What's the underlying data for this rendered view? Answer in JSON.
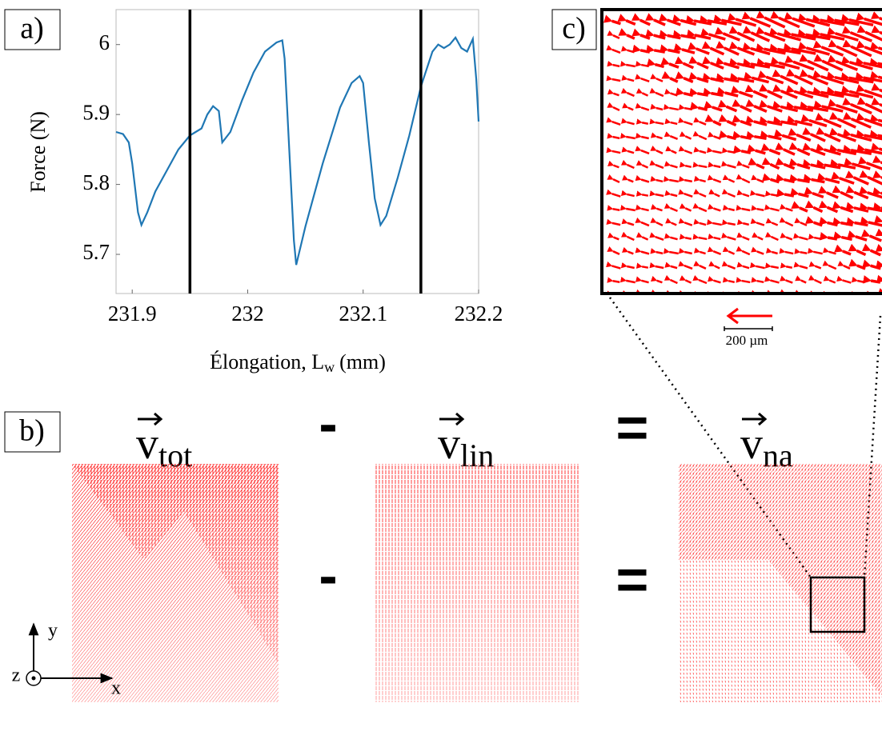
{
  "chart_data": {
    "type": "line",
    "panel_label": "a)",
    "ylabel": "Force (N)",
    "xlabel": "Élongation, L",
    "xlabel_sub": "w",
    "xlabel_end": "(mm)",
    "color": "#1f77b4",
    "x": [
      231.886,
      231.892,
      231.897,
      231.9,
      231.905,
      231.908,
      231.913,
      231.92,
      231.93,
      231.94,
      231.95,
      231.955,
      231.96,
      231.965,
      231.97,
      231.975,
      231.978,
      231.985,
      231.995,
      232.005,
      232.015,
      232.025,
      232.03,
      232.032,
      232.036,
      232.04,
      232.042,
      232.05,
      232.065,
      232.08,
      232.09,
      232.097,
      232.1,
      232.105,
      232.11,
      232.115,
      232.12,
      232.13,
      232.14,
      232.15,
      232.16,
      232.165,
      232.17,
      232.175,
      232.18,
      232.185,
      232.19,
      232.195,
      232.198,
      232.2
    ],
    "values": [
      5.875,
      5.872,
      5.86,
      5.83,
      5.76,
      5.742,
      5.76,
      5.79,
      5.82,
      5.85,
      5.87,
      5.875,
      5.88,
      5.9,
      5.912,
      5.905,
      5.86,
      5.875,
      5.92,
      5.96,
      5.99,
      6.003,
      6.006,
      5.98,
      5.85,
      5.72,
      5.685,
      5.74,
      5.83,
      5.91,
      5.945,
      5.955,
      5.945,
      5.86,
      5.78,
      5.742,
      5.755,
      5.81,
      5.87,
      5.94,
      5.99,
      6.0,
      5.995,
      6.0,
      6.01,
      5.995,
      5.99,
      6.008,
      5.95,
      5.89
    ],
    "vlines": [
      231.95,
      232.15
    ],
    "xlim": [
      231.886,
      232.2
    ],
    "ylim": [
      5.644,
      6.05
    ],
    "xticks": [
      231.9,
      232,
      232.1,
      232.2
    ],
    "yticks": [
      5.7,
      5.8,
      5.9,
      6
    ]
  },
  "figure": {
    "panel_b": "b)",
    "panel_c": "c)",
    "terms": [
      {
        "symbol": "v",
        "sub": "tot"
      },
      {
        "symbol": "v",
        "sub": "lin"
      },
      {
        "symbol": "v",
        "sub": "na"
      }
    ],
    "minus": "-",
    "equals": "=",
    "scale_bar": "200 µm",
    "axis_y": "y",
    "axis_x": "x",
    "axis_z": "z"
  }
}
